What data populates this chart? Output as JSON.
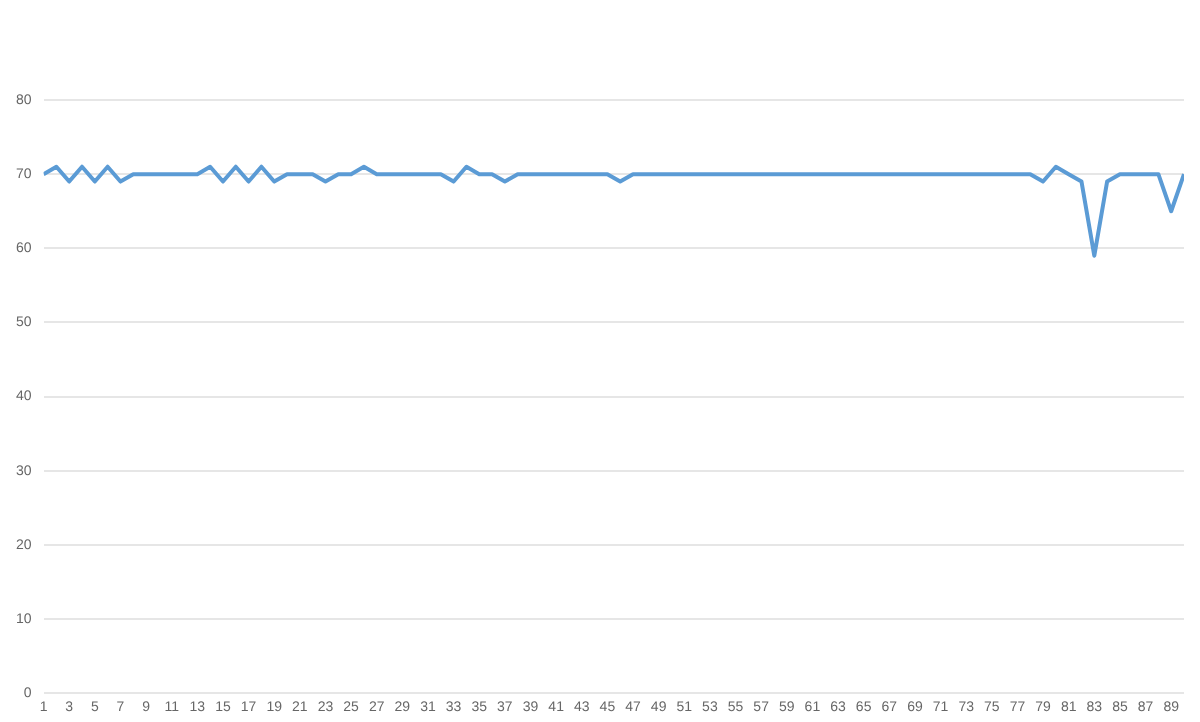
{
  "chart_data": {
    "type": "line",
    "x": [
      1,
      2,
      3,
      4,
      5,
      6,
      7,
      8,
      9,
      10,
      11,
      12,
      13,
      14,
      15,
      16,
      17,
      18,
      19,
      20,
      21,
      22,
      23,
      24,
      25,
      26,
      27,
      28,
      29,
      30,
      31,
      32,
      33,
      34,
      35,
      36,
      37,
      38,
      39,
      40,
      41,
      42,
      43,
      44,
      45,
      46,
      47,
      48,
      49,
      50,
      51,
      52,
      53,
      54,
      55,
      56,
      57,
      58,
      59,
      60,
      61,
      62,
      63,
      64,
      65,
      66,
      67,
      68,
      69,
      70,
      71,
      72,
      73,
      74,
      75,
      76,
      77,
      78,
      79,
      80,
      81,
      82,
      83,
      84,
      85,
      86,
      87,
      88,
      89,
      90
    ],
    "values": [
      70,
      71,
      69,
      71,
      69,
      71,
      69,
      70,
      70,
      70,
      70,
      70,
      70,
      71,
      69,
      71,
      69,
      71,
      69,
      70,
      70,
      70,
      69,
      70,
      70,
      71,
      70,
      70,
      70,
      70,
      70,
      70,
      69,
      71,
      70,
      70,
      69,
      70,
      70,
      70,
      70,
      70,
      70,
      70,
      70,
      69,
      70,
      70,
      70,
      70,
      70,
      70,
      70,
      70,
      70,
      70,
      70,
      70,
      70,
      70,
      70,
      70,
      70,
      70,
      70,
      70,
      70,
      70,
      70,
      70,
      70,
      70,
      70,
      70,
      70,
      70,
      70,
      70,
      69,
      71,
      70,
      69,
      59,
      69,
      70,
      70,
      70,
      70,
      65,
      70
    ],
    "color": "#5b9bd5",
    "xlim": [
      1,
      90
    ],
    "xticks": [
      1,
      3,
      5,
      7,
      9,
      11,
      13,
      15,
      17,
      19,
      21,
      23,
      25,
      27,
      29,
      31,
      33,
      35,
      37,
      39,
      41,
      43,
      45,
      47,
      49,
      51,
      53,
      55,
      57,
      59,
      61,
      63,
      65,
      67,
      69,
      71,
      73,
      75,
      77,
      79,
      81,
      83,
      85,
      87,
      89
    ],
    "ylim": [
      0,
      80
    ],
    "yticks": [
      0,
      10,
      20,
      30,
      40,
      50,
      60,
      70,
      80
    ],
    "grid": "y",
    "marker": "none",
    "line_style": "solid"
  }
}
